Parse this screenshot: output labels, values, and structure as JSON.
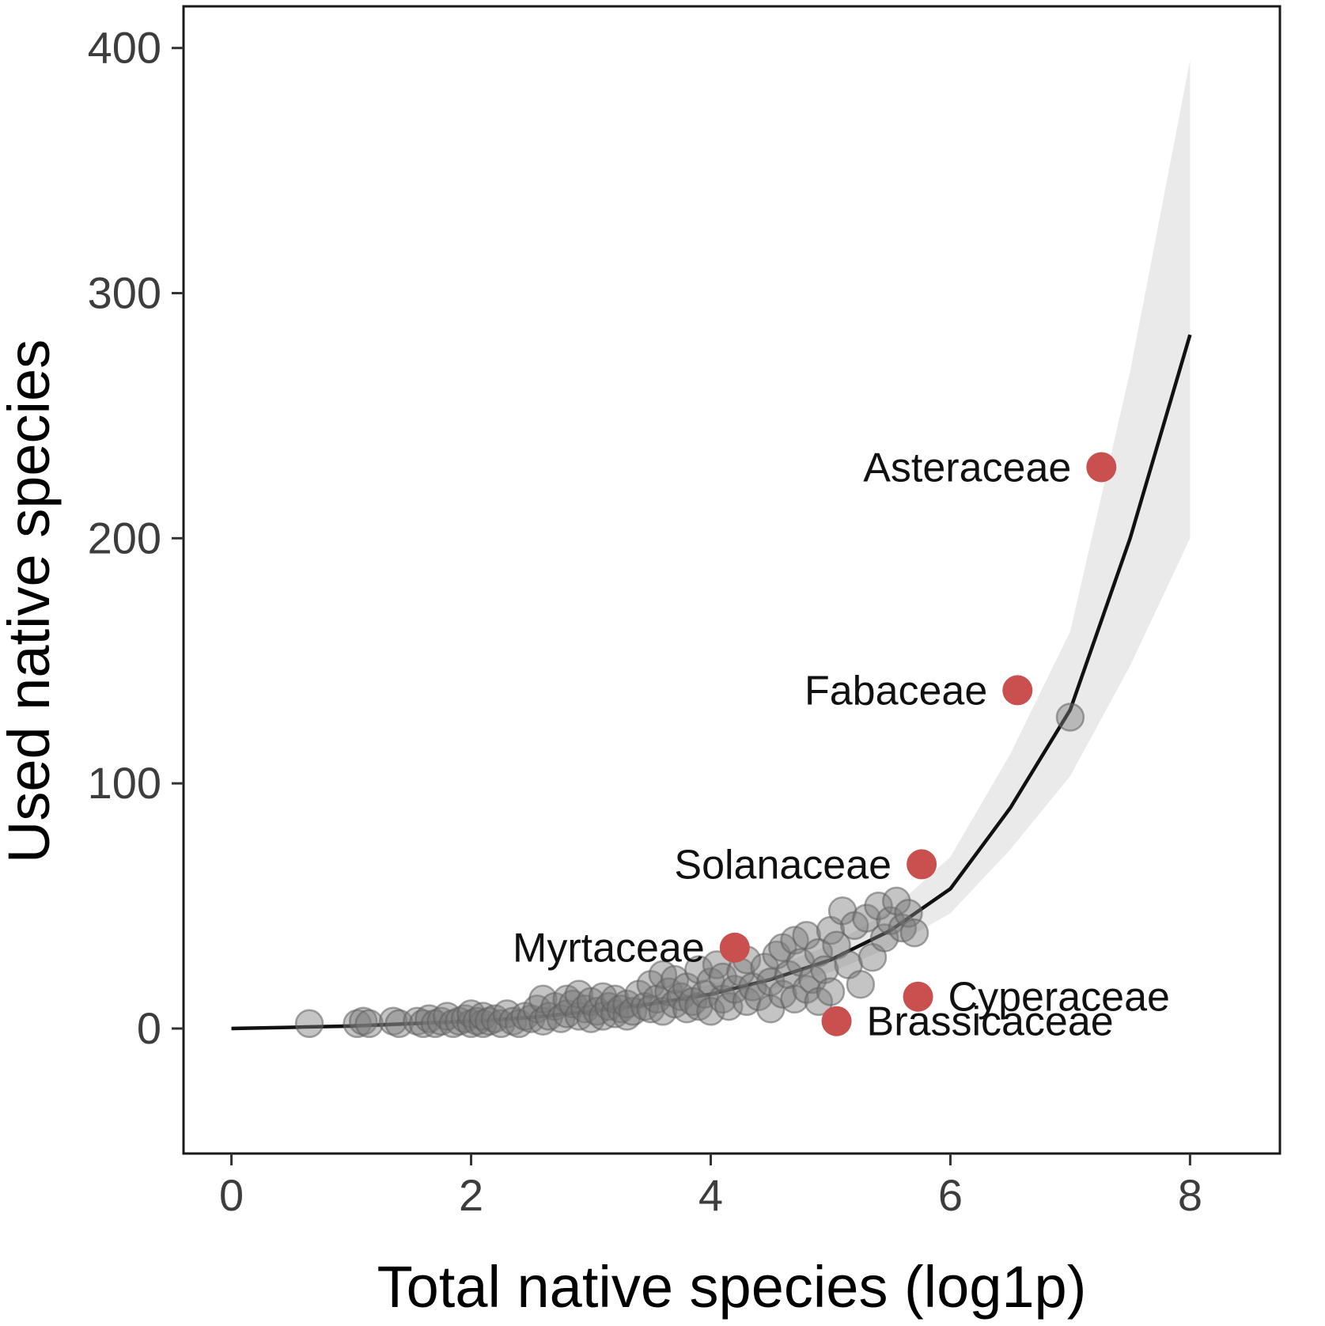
{
  "figure": {
    "background": "#ffffff"
  },
  "chart_data": {
    "type": "scatter",
    "title": "",
    "xlabel": "Total native species (log1p)",
    "ylabel": "Used native species",
    "xlim": [
      -0.4,
      8.75
    ],
    "ylim": [
      -51,
      417
    ],
    "xticks": [
      0,
      2,
      4,
      6,
      8
    ],
    "yticks": [
      0,
      100,
      200,
      300,
      400
    ],
    "grid": false,
    "panel_border": true,
    "legend": null,
    "colors": {
      "point_fill": "#7d7d7d",
      "point_stroke": "#5f5f5f",
      "point_opacity": 0.45,
      "highlight": "#c9504e",
      "line": "#111111",
      "ribbon": "#d6d6d6",
      "ribbon_opacity": 0.5,
      "tick": "#333333",
      "axis_text": "#3d3d3d",
      "axis_title": "#000000",
      "border": "#1a1a1a"
    },
    "points": [
      [
        0.65,
        2
      ],
      [
        1.05,
        2
      ],
      [
        1.1,
        3
      ],
      [
        1.15,
        2
      ],
      [
        1.35,
        3
      ],
      [
        1.4,
        2
      ],
      [
        1.55,
        3
      ],
      [
        1.6,
        2
      ],
      [
        1.65,
        4
      ],
      [
        1.7,
        2
      ],
      [
        1.75,
        3
      ],
      [
        1.8,
        5
      ],
      [
        1.85,
        2
      ],
      [
        1.9,
        3
      ],
      [
        1.95,
        4
      ],
      [
        2.0,
        2
      ],
      [
        2.0,
        6
      ],
      [
        2.05,
        3
      ],
      [
        2.1,
        2
      ],
      [
        2.1,
        5
      ],
      [
        2.15,
        3
      ],
      [
        2.2,
        4
      ],
      [
        2.25,
        2
      ],
      [
        2.3,
        6
      ],
      [
        2.35,
        3
      ],
      [
        2.4,
        2
      ],
      [
        2.45,
        5
      ],
      [
        2.5,
        4
      ],
      [
        2.55,
        8
      ],
      [
        2.6,
        3
      ],
      [
        2.6,
        12
      ],
      [
        2.65,
        5
      ],
      [
        2.7,
        9
      ],
      [
        2.75,
        4
      ],
      [
        2.8,
        12
      ],
      [
        2.8,
        6
      ],
      [
        2.85,
        10
      ],
      [
        2.9,
        5
      ],
      [
        2.9,
        14
      ],
      [
        2.95,
        8
      ],
      [
        3.0,
        4
      ],
      [
        3.0,
        11
      ],
      [
        3.05,
        7
      ],
      [
        3.1,
        13
      ],
      [
        3.1,
        5
      ],
      [
        3.15,
        9
      ],
      [
        3.2,
        6
      ],
      [
        3.2,
        12
      ],
      [
        3.25,
        8
      ],
      [
        3.3,
        5
      ],
      [
        3.3,
        10
      ],
      [
        3.35,
        7
      ],
      [
        3.4,
        14
      ],
      [
        3.45,
        9
      ],
      [
        3.5,
        18
      ],
      [
        3.5,
        8
      ],
      [
        3.55,
        12
      ],
      [
        3.6,
        22
      ],
      [
        3.6,
        7
      ],
      [
        3.65,
        15
      ],
      [
        3.7,
        10
      ],
      [
        3.7,
        20
      ],
      [
        3.75,
        13
      ],
      [
        3.8,
        8
      ],
      [
        3.8,
        17
      ],
      [
        3.85,
        11
      ],
      [
        3.9,
        24
      ],
      [
        3.9,
        9
      ],
      [
        3.95,
        14
      ],
      [
        4.0,
        19
      ],
      [
        4.0,
        7
      ],
      [
        4.05,
        26
      ],
      [
        4.1,
        12
      ],
      [
        4.1,
        21
      ],
      [
        4.15,
        9
      ],
      [
        4.2,
        16
      ],
      [
        4.25,
        23
      ],
      [
        4.3,
        11
      ],
      [
        4.3,
        28
      ],
      [
        4.35,
        17
      ],
      [
        4.4,
        13
      ],
      [
        4.45,
        25
      ],
      [
        4.5,
        19
      ],
      [
        4.5,
        8
      ],
      [
        4.55,
        30
      ],
      [
        4.6,
        14
      ],
      [
        4.6,
        33
      ],
      [
        4.65,
        22
      ],
      [
        4.7,
        36
      ],
      [
        4.7,
        12
      ],
      [
        4.75,
        27
      ],
      [
        4.8,
        16
      ],
      [
        4.8,
        38
      ],
      [
        4.85,
        20
      ],
      [
        4.9,
        11
      ],
      [
        4.9,
        31
      ],
      [
        4.95,
        24
      ],
      [
        5.0,
        40
      ],
      [
        5.0,
        15
      ],
      [
        5.05,
        34
      ],
      [
        5.1,
        48
      ],
      [
        5.15,
        26
      ],
      [
        5.2,
        42
      ],
      [
        5.25,
        18
      ],
      [
        5.3,
        45
      ],
      [
        5.35,
        29
      ],
      [
        5.4,
        50
      ],
      [
        5.45,
        37
      ],
      [
        5.5,
        44
      ],
      [
        5.55,
        52
      ],
      [
        5.6,
        41
      ],
      [
        5.65,
        47
      ],
      [
        5.7,
        39
      ],
      [
        7.0,
        127
      ]
    ],
    "highlighted_points": [
      {
        "label": "Asteraceae",
        "x": 7.26,
        "y": 229,
        "label_side": "left"
      },
      {
        "label": "Fabaceae",
        "x": 6.56,
        "y": 138,
        "label_side": "left"
      },
      {
        "label": "Solanaceae",
        "x": 5.76,
        "y": 67,
        "label_side": "left"
      },
      {
        "label": "Myrtaceae",
        "x": 4.2,
        "y": 33,
        "label_side": "left"
      },
      {
        "label": "Cyperaceae",
        "x": 5.73,
        "y": 13,
        "label_side": "right"
      },
      {
        "label": "Brassicaceae",
        "x": 5.05,
        "y": 3,
        "label_side": "right"
      }
    ],
    "smooth_line": [
      [
        0,
        0
      ],
      [
        0.5,
        0.5
      ],
      [
        1,
        1
      ],
      [
        1.5,
        2
      ],
      [
        2,
        3
      ],
      [
        2.5,
        4.5
      ],
      [
        3,
        7
      ],
      [
        3.5,
        10
      ],
      [
        4,
        14
      ],
      [
        4.5,
        20
      ],
      [
        5,
        28
      ],
      [
        5.5,
        40
      ],
      [
        6,
        57
      ],
      [
        6.5,
        90
      ],
      [
        7,
        130
      ],
      [
        7.5,
        200
      ],
      [
        8,
        283
      ]
    ],
    "ribbon": {
      "x": [
        0,
        0.5,
        1,
        1.5,
        2,
        2.5,
        3,
        3.5,
        4,
        4.5,
        5,
        5.5,
        6,
        6.5,
        7,
        7.5,
        8
      ],
      "lower": [
        0,
        0,
        0,
        1,
        2,
        3,
        5,
        7,
        11,
        16,
        23,
        33,
        47,
        73,
        103,
        148,
        200
      ],
      "upper": [
        1,
        1,
        2,
        3,
        5,
        7,
        9,
        13,
        18,
        25,
        34,
        48,
        70,
        112,
        162,
        268,
        395
      ]
    }
  }
}
